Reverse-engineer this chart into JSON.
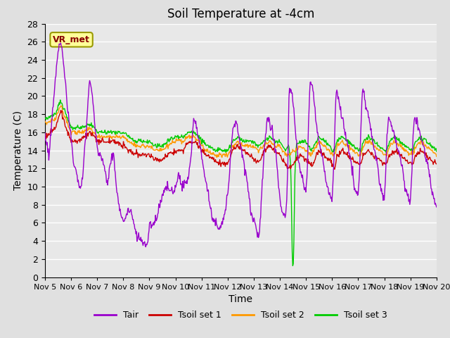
{
  "title": "Soil Temperature at -4cm",
  "xlabel": "Time",
  "ylabel": "Temperature (C)",
  "ylim": [
    0,
    28
  ],
  "xlim": [
    0,
    15
  ],
  "x_tick_labels": [
    "Nov 5",
    "Nov 6",
    "Nov 7",
    "Nov 8",
    "Nov 9",
    "Nov 10",
    "Nov 11",
    "Nov 12",
    "Nov 13",
    "Nov 14",
    "Nov 15",
    "Nov 16",
    "Nov 17",
    "Nov 18",
    "Nov 19",
    "Nov 20"
  ],
  "background_color": "#e0e0e0",
  "plot_bg_color": "#e8e8e8",
  "grid_color": "#ffffff",
  "legend_entries": [
    "Tair",
    "Tsoil set 1",
    "Tsoil set 2",
    "Tsoil set 3"
  ],
  "legend_colors": [
    "#9900cc",
    "#cc0000",
    "#ff9900",
    "#00cc00"
  ],
  "annotation_text": "VR_met",
  "annotation_box_color": "#ffff99",
  "annotation_box_edge": "#999900",
  "title_fontsize": 12,
  "axis_label_fontsize": 10,
  "tick_fontsize": 9
}
